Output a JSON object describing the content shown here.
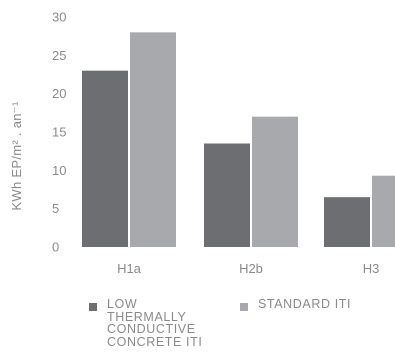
{
  "chart_data": {
    "type": "bar",
    "categories": [
      "H1a",
      "H2b",
      "H3"
    ],
    "series": [
      {
        "name": "LOW\nTHERMALLY\nCONDUCTIVE\nCONCRETE ITI",
        "values": [
          23,
          13.5,
          6.5
        ],
        "color": "#6d6e71"
      },
      {
        "name": "STANDARD ITI",
        "values": [
          28,
          17,
          9.3
        ],
        "color": "#a7a9ac"
      }
    ],
    "ylabel": "KWh EP/m² . an⁻¹",
    "ylim": [
      0,
      30
    ],
    "yticks": [
      "0",
      "5",
      "10",
      "15",
      "20",
      "25",
      "30"
    ],
    "grid": false,
    "legend_position": "bottom"
  }
}
